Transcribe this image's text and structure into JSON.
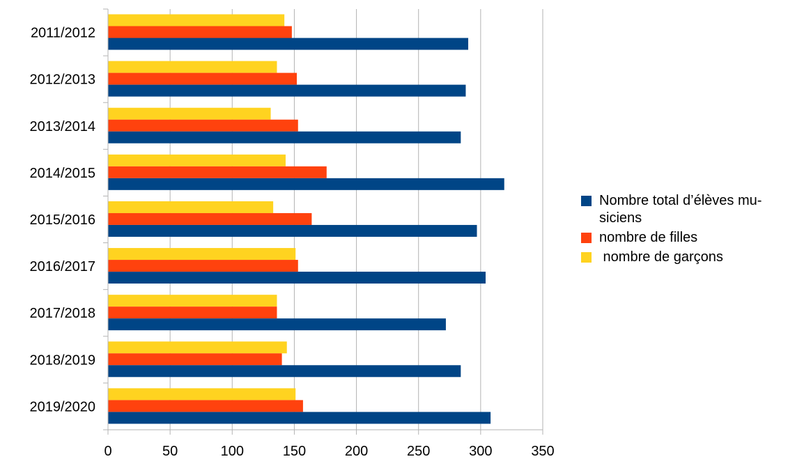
{
  "chart_data": {
    "type": "bar",
    "orientation": "horizontal",
    "title": "",
    "xlabel": "",
    "ylabel": "",
    "categories": [
      "2011/2012",
      "2012/2013",
      "2013/2014",
      "2014/2015",
      "2015/2016",
      "2016/2017",
      "2017/2018",
      "2018/2019",
      "2019/2020"
    ],
    "series": [
      {
        "name": "Nombre total d’élèves musiciens",
        "legend_lines": [
          "Nombre total d’élèves mu-",
          "siciens"
        ],
        "color": "#004586",
        "values": [
          290,
          288,
          284,
          319,
          297,
          304,
          272,
          284,
          308
        ]
      },
      {
        "name": "nombre de filles",
        "legend_lines": [
          "nombre de filles"
        ],
        "color": "#ff420e",
        "values": [
          148,
          152,
          153,
          176,
          164,
          153,
          136,
          140,
          157
        ]
      },
      {
        "name": " nombre de garçons",
        "legend_lines": [
          " nombre de garçons"
        ],
        "color": "#ffd320",
        "values": [
          142,
          136,
          131,
          143,
          133,
          151,
          136,
          144,
          151
        ]
      }
    ],
    "xlim": [
      0,
      350
    ],
    "x_ticks": [
      "0",
      "50",
      "100",
      "150",
      "200",
      "250",
      "300",
      "350"
    ],
    "grid": true,
    "legend_position": "right"
  }
}
